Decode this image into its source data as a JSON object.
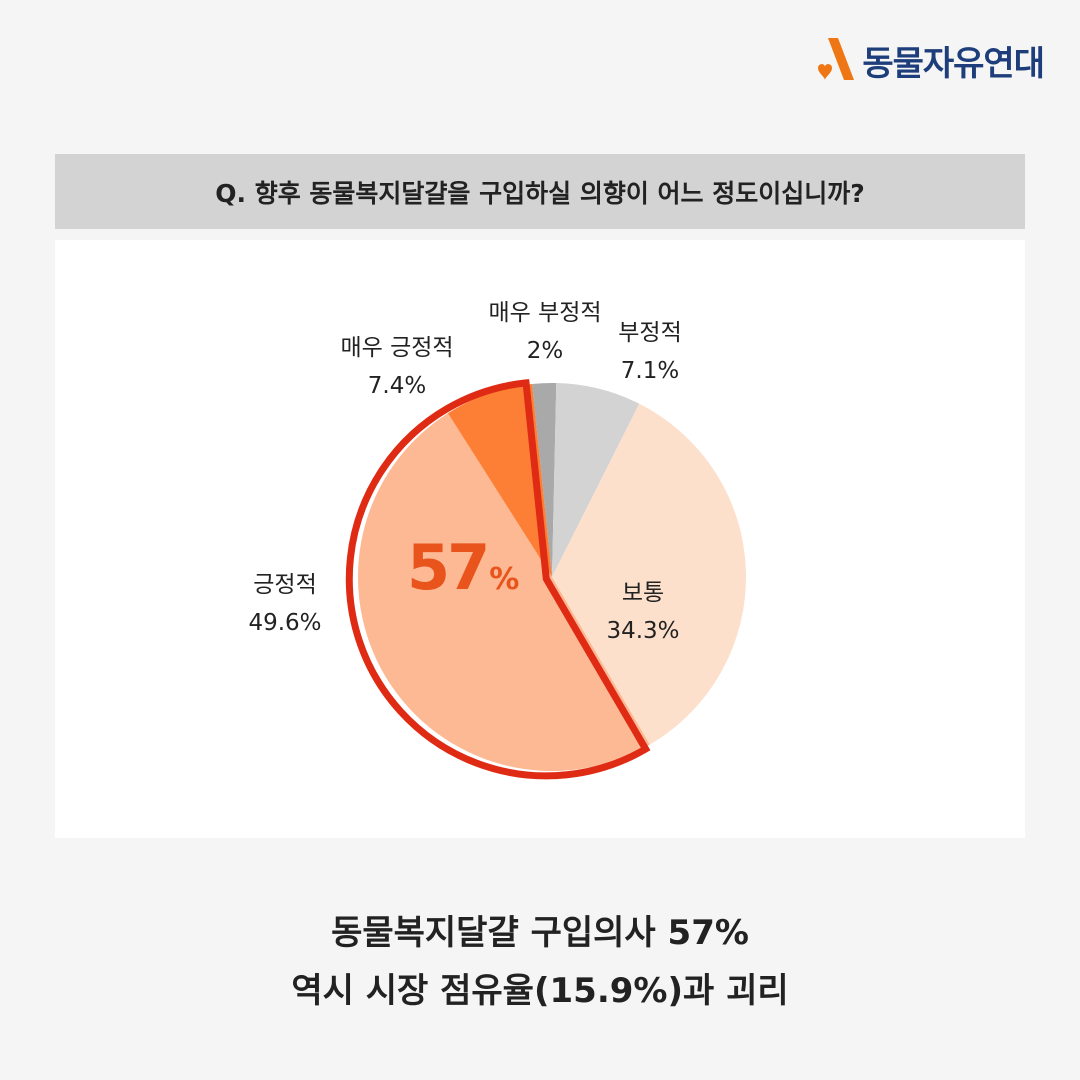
{
  "brand": {
    "name": "동물자유연대",
    "color": "#1d3e7a",
    "mark_color": "#ee7614"
  },
  "question": "Q. 향후 동물복지달걀을 구입하실 의향이 어느 정도이십니까?",
  "highlight": {
    "value": "57",
    "unit": "%"
  },
  "headline": {
    "line1": "동물복지달걀 구입의사 57%",
    "line2": "역시 시장 점유율(15.9%)과 괴리"
  },
  "chart_data": {
    "type": "pie",
    "slices": [
      {
        "label": "매우 부정적",
        "value": 2,
        "value_text": "2%",
        "color": "#a9a9a9"
      },
      {
        "label": "부정적",
        "value": 7.1,
        "value_text": "7.1%",
        "color": "#d3d3d3"
      },
      {
        "label": "보통",
        "value": 34.3,
        "value_text": "34.3%",
        "color": "#fde0cc"
      },
      {
        "label": "긍정적",
        "value": 49.6,
        "value_text": "49.6%",
        "color": "#fcb994"
      },
      {
        "label": "매우 긍정적",
        "value": 7.4,
        "value_text": "7.4%",
        "color": "#fd7f35"
      }
    ],
    "highlight_outline_color": "#e02b14"
  }
}
